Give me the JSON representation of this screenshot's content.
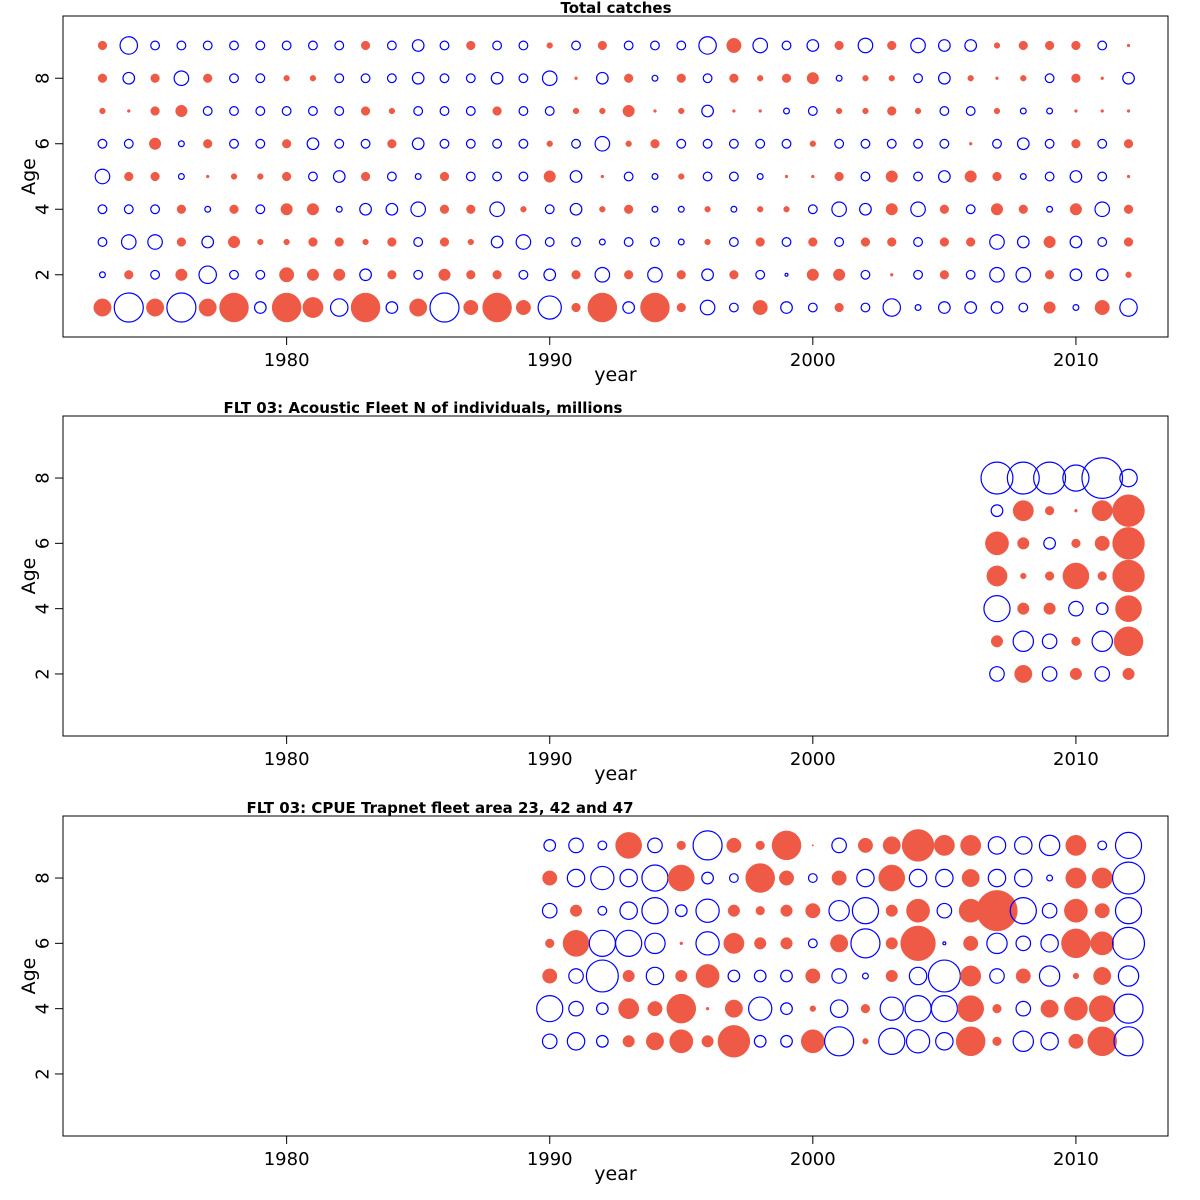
{
  "colors": {
    "positive": "#EE5A45",
    "negative": "#0000FF",
    "frame": "#000000"
  },
  "chart_data": [
    {
      "type": "scatter",
      "subtype": "bubble",
      "title": "Total catches",
      "xlabel": "year",
      "ylabel": "Age",
      "xlim": [
        1971.5,
        2013.5
      ],
      "ylim": [
        0.1,
        9.9
      ],
      "xticks": [
        1980,
        1990,
        2000,
        2010
      ],
      "yticks": [
        2,
        4,
        6,
        8
      ],
      "x": [
        1973,
        1974,
        1975,
        1976,
        1977,
        1978,
        1979,
        1980,
        1981,
        1982,
        1983,
        1984,
        1985,
        1986,
        1987,
        1988,
        1989,
        1990,
        1991,
        1992,
        1993,
        1994,
        1995,
        1996,
        1997,
        1998,
        1999,
        2000,
        2001,
        2002,
        2003,
        2004,
        2005,
        2006,
        2007,
        2008,
        2009,
        2010,
        2011,
        2012
      ],
      "ages": [
        1,
        2,
        3,
        4,
        5,
        6,
        7,
        8,
        9
      ],
      "residuals": [
        [
          0.6,
          -1.0,
          0.6,
          -1.0,
          0.6,
          1.0,
          -0.4,
          1.0,
          0.7,
          -0.6,
          1.0,
          -0.4,
          0.6,
          -1.0,
          0.5,
          1.0,
          0.5,
          -0.8,
          0.3,
          1.0,
          -0.4,
          1.0,
          0.3,
          -0.5,
          -0.3,
          0.5,
          -0.4,
          -0.3,
          0.3,
          -0.3,
          -0.6,
          -0.2,
          -0.4,
          -0.4,
          -0.4,
          -0.3,
          0.4,
          -0.2,
          0.5,
          -0.6
        ],
        [
          -0.2,
          0.3,
          -0.3,
          0.4,
          -0.6,
          -0.3,
          -0.3,
          0.5,
          0.4,
          0.4,
          -0.4,
          0.3,
          -0.3,
          0.4,
          0.3,
          0.3,
          -0.3,
          -0.4,
          0.3,
          -0.5,
          0.3,
          -0.5,
          0.3,
          -0.4,
          0.3,
          -0.3,
          -0.1,
          0.4,
          0.4,
          -0.3,
          0.1,
          -0.3,
          0.3,
          -0.3,
          -0.5,
          -0.5,
          0.3,
          -0.4,
          -0.4,
          0.2
        ],
        [
          -0.3,
          -0.5,
          -0.5,
          0.3,
          -0.4,
          0.4,
          0.2,
          0.2,
          0.3,
          0.3,
          0.2,
          0.3,
          -0.3,
          0.3,
          0.2,
          -0.4,
          -0.5,
          -0.3,
          -0.3,
          -0.2,
          -0.3,
          -0.3,
          -0.2,
          0.2,
          -0.3,
          0.3,
          -0.3,
          0.3,
          -0.3,
          0.3,
          0.3,
          -0.3,
          0.3,
          0.3,
          -0.5,
          -0.4,
          0.4,
          -0.4,
          -0.3,
          0.3
        ],
        [
          -0.3,
          -0.3,
          -0.3,
          0.3,
          -0.2,
          0.3,
          -0.3,
          0.4,
          0.4,
          -0.2,
          -0.4,
          -0.4,
          -0.5,
          0.3,
          0.3,
          -0.5,
          0.2,
          -0.3,
          -0.4,
          0.2,
          0.3,
          -0.2,
          -0.2,
          0.2,
          -0.2,
          0.2,
          0.2,
          -0.3,
          -0.5,
          -0.4,
          0.4,
          -0.5,
          0.3,
          -0.3,
          0.4,
          0.3,
          -0.2,
          0.4,
          -0.5,
          0.3
        ],
        [
          -0.5,
          0.3,
          0.3,
          -0.2,
          0.1,
          0.2,
          0.2,
          0.3,
          -0.3,
          -0.4,
          0.3,
          -0.3,
          -0.2,
          0.3,
          -0.3,
          -0.3,
          -0.3,
          0.4,
          -0.4,
          0.1,
          -0.3,
          -0.2,
          0.2,
          -0.3,
          -0.3,
          -0.2,
          0.1,
          0.1,
          0.3,
          -0.3,
          0.4,
          -0.3,
          -0.4,
          0.4,
          0.3,
          -0.2,
          -0.3,
          -0.4,
          -0.3,
          0.1
        ],
        [
          -0.3,
          -0.3,
          0.4,
          -0.2,
          0.3,
          -0.3,
          -0.3,
          0.3,
          -0.4,
          -0.3,
          -0.3,
          0.3,
          -0.4,
          -0.3,
          -0.3,
          -0.3,
          -0.3,
          0.2,
          -0.3,
          -0.5,
          0.2,
          0.3,
          -0.3,
          -0.3,
          -0.3,
          -0.3,
          -0.3,
          0.2,
          -0.3,
          -0.3,
          -0.3,
          -0.3,
          -0.3,
          0.1,
          -0.3,
          -0.4,
          -0.3,
          0.3,
          -0.3,
          0.3
        ],
        [
          0.2,
          0.1,
          0.3,
          0.4,
          -0.3,
          -0.3,
          -0.3,
          -0.3,
          -0.3,
          -0.3,
          0.3,
          0.2,
          -0.3,
          -0.3,
          -0.3,
          0.3,
          -0.3,
          -0.3,
          0.2,
          0.2,
          0.4,
          0.1,
          0.2,
          -0.4,
          0.1,
          0.1,
          -0.2,
          -0.3,
          0.2,
          0.2,
          0.3,
          0.2,
          -0.3,
          -0.3,
          0.2,
          -0.2,
          -0.2,
          0.1,
          0.1,
          0.1
        ],
        [
          0.3,
          -0.4,
          0.3,
          -0.5,
          0.3,
          -0.3,
          -0.3,
          0.2,
          0.2,
          -0.3,
          -0.3,
          -0.3,
          -0.4,
          -0.3,
          -0.3,
          -0.4,
          -0.3,
          -0.5,
          0.1,
          -0.4,
          0.3,
          -0.2,
          0.3,
          -0.3,
          0.3,
          0.2,
          0.3,
          0.4,
          -0.2,
          0.2,
          0.2,
          -0.3,
          -0.4,
          0.2,
          0.1,
          0.2,
          -0.3,
          0.3,
          0.1,
          -0.4
        ],
        [
          0.3,
          -0.6,
          -0.3,
          -0.3,
          -0.3,
          -0.3,
          -0.3,
          -0.3,
          -0.3,
          -0.3,
          0.3,
          -0.3,
          -0.4,
          -0.3,
          0.3,
          -0.3,
          -0.3,
          0.2,
          -0.3,
          0.3,
          -0.3,
          -0.3,
          -0.3,
          -0.6,
          0.5,
          -0.5,
          -0.3,
          -0.4,
          0.3,
          -0.5,
          0.3,
          -0.5,
          -0.4,
          -0.4,
          0.2,
          0.3,
          0.3,
          0.3,
          -0.3,
          0.1
        ]
      ]
    },
    {
      "type": "scatter",
      "subtype": "bubble",
      "title": "FLT 03: Acoustic Fleet   N of individuals, millions",
      "xlabel": "year",
      "ylabel": "Age",
      "xlim": [
        1971.5,
        2013.5
      ],
      "ylim": [
        0.1,
        9.9
      ],
      "xticks": [
        1980,
        1990,
        2000,
        2010
      ],
      "yticks": [
        2,
        4,
        6,
        8
      ],
      "x": [
        2007,
        2008,
        2009,
        2010,
        2011,
        2012
      ],
      "ages": [
        2,
        3,
        4,
        5,
        6,
        7,
        8
      ],
      "residuals": [
        [
          -0.5,
          0.6,
          -0.5,
          0.4,
          -0.5,
          0.4
        ],
        [
          0.4,
          -0.7,
          -0.5,
          0.3,
          -0.7,
          1.0
        ],
        [
          -0.9,
          0.4,
          0.4,
          -0.5,
          -0.4,
          0.9
        ],
        [
          0.7,
          0.2,
          0.3,
          0.9,
          0.3,
          1.1
        ],
        [
          0.8,
          0.4,
          -0.4,
          0.3,
          0.5,
          1.1
        ],
        [
          -0.4,
          0.7,
          0.3,
          0.1,
          0.7,
          1.1
        ],
        [
          -1.1,
          -1.1,
          -1.1,
          -0.9,
          -1.4,
          -0.6
        ]
      ]
    },
    {
      "type": "scatter",
      "subtype": "bubble",
      "title": "FLT 03: CPUE Trapnet fleet area 23, 42 and 47",
      "xlabel": "year",
      "ylabel": "Age",
      "xlim": [
        1971.5,
        2013.5
      ],
      "ylim": [
        0.1,
        9.9
      ],
      "xticks": [
        1980,
        1990,
        2000,
        2010
      ],
      "yticks": [
        2,
        4,
        6,
        8
      ],
      "x": [
        1990,
        1991,
        1992,
        1993,
        1994,
        1995,
        1996,
        1997,
        1998,
        1999,
        2000,
        2001,
        2002,
        2003,
        2004,
        2005,
        2006,
        2007,
        2008,
        2009,
        2010,
        2011,
        2012
      ],
      "ages": [
        3,
        4,
        5,
        6,
        7,
        8,
        9
      ],
      "residuals": [
        [
          -0.5,
          -0.6,
          -0.4,
          0.4,
          0.6,
          0.8,
          0.4,
          1.1,
          -0.4,
          -0.4,
          0.8,
          -1.0,
          0.2,
          -0.9,
          -0.8,
          -0.6,
          1.0,
          0.3,
          -0.7,
          -0.6,
          0.5,
          1.0,
          -1.0
        ],
        [
          -0.9,
          -0.5,
          -0.4,
          0.7,
          0.5,
          1.0,
          0.1,
          0.6,
          -0.8,
          -0.4,
          0.2,
          -0.6,
          0.3,
          -0.8,
          -0.9,
          -0.9,
          0.9,
          0.3,
          -0.5,
          0.6,
          0.8,
          0.9,
          -1.0
        ],
        [
          0.5,
          -0.5,
          -1.1,
          0.4,
          -0.6,
          0.4,
          0.8,
          -0.4,
          -0.4,
          -0.4,
          0.5,
          -0.5,
          -0.2,
          0.4,
          -0.6,
          -1.1,
          0.7,
          -0.5,
          0.5,
          -0.7,
          0.2,
          0.6,
          -0.7
        ],
        [
          0.3,
          0.9,
          -0.9,
          -0.9,
          -0.7,
          0.1,
          -0.8,
          0.7,
          0.4,
          0.4,
          -0.3,
          0.6,
          -1.0,
          0.4,
          1.2,
          -0.1,
          0.5,
          -0.7,
          -0.5,
          -0.6,
          1.0,
          0.8,
          -1.1
        ],
        [
          -0.5,
          0.4,
          -0.3,
          -0.6,
          -0.9,
          -0.4,
          -0.8,
          0.4,
          0.3,
          0.4,
          0.5,
          -0.7,
          -0.9,
          0.4,
          0.8,
          -0.5,
          0.8,
          1.4,
          -0.9,
          -0.5,
          0.8,
          0.5,
          -0.9
        ],
        [
          0.5,
          -0.6,
          -0.8,
          -0.6,
          -0.9,
          0.9,
          -0.4,
          -0.3,
          1.0,
          0.5,
          -0.3,
          0.5,
          -0.6,
          0.9,
          -0.6,
          -0.6,
          0.6,
          -0.6,
          -0.6,
          -0.2,
          0.7,
          0.7,
          -1.1
        ],
        [
          -0.4,
          -0.5,
          -0.3,
          0.9,
          -0.5,
          0.3,
          -1.0,
          0.5,
          0.3,
          1.0,
          0.05,
          -0.5,
          0.5,
          0.6,
          1.1,
          0.7,
          0.7,
          -0.6,
          -0.6,
          -0.7,
          0.7,
          -0.3,
          -0.9
        ]
      ]
    }
  ]
}
